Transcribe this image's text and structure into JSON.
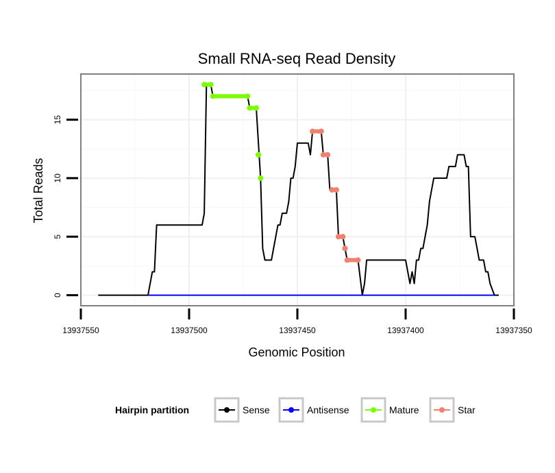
{
  "chart_data": {
    "type": "line",
    "title": "Small RNA-seq Read Density",
    "xlabel": "Genomic Position",
    "ylabel": "Total Reads",
    "x_reversed": true,
    "xlim": [
      13937550,
      13937350
    ],
    "ylim": [
      -0.9,
      18.9
    ],
    "x_ticks": [
      13937550,
      13937500,
      13937450,
      13937400,
      13937350
    ],
    "x_tick_labels": [
      "13937550",
      "13937500",
      "13937450",
      "13937400",
      "13937350"
    ],
    "y_ticks": [
      0,
      5,
      10,
      15
    ],
    "y_tick_labels": [
      "0",
      "5",
      "10",
      "15"
    ],
    "grid": true,
    "legend": {
      "title": "Hairpin partition",
      "position": "bottom",
      "entries": [
        {
          "name": "Sense",
          "color": "#000000"
        },
        {
          "name": "Antisense",
          "color": "#0000ff"
        },
        {
          "name": "Mature",
          "color": "#7cfc00"
        },
        {
          "name": "Star",
          "color": "#f08070"
        }
      ]
    },
    "series": [
      {
        "name": "Sense",
        "color": "#000000",
        "style": "line",
        "points": [
          [
            13937542,
            0
          ],
          [
            13937519,
            0
          ],
          [
            13937517,
            2
          ],
          [
            13937516,
            2
          ],
          [
            13937515,
            6
          ],
          [
            13937494,
            6
          ],
          [
            13937493,
            7
          ],
          [
            13937492,
            18
          ],
          [
            13937490,
            18
          ],
          [
            13937489,
            17
          ],
          [
            13937473,
            17
          ],
          [
            13937472,
            16
          ],
          [
            13937469,
            16
          ],
          [
            13937467,
            10
          ],
          [
            13937466,
            4
          ],
          [
            13937465,
            3
          ],
          [
            13937462,
            3
          ],
          [
            13937459,
            6
          ],
          [
            13937458,
            6
          ],
          [
            13937457,
            7
          ],
          [
            13937455,
            7
          ],
          [
            13937454,
            8
          ],
          [
            13937453,
            10
          ],
          [
            13937452,
            10
          ],
          [
            13937451,
            11
          ],
          [
            13937450,
            13
          ],
          [
            13937445,
            13
          ],
          [
            13937444,
            12
          ],
          [
            13937443,
            14
          ],
          [
            13937439,
            14
          ],
          [
            13937438,
            12
          ],
          [
            13937436,
            12
          ],
          [
            13937435,
            9
          ],
          [
            13937432,
            9
          ],
          [
            13937431,
            5
          ],
          [
            13937429,
            5
          ],
          [
            13937428,
            4
          ],
          [
            13937427,
            3
          ],
          [
            13937422,
            3
          ],
          [
            13937420,
            0
          ],
          [
            13937419,
            1
          ],
          [
            13937418,
            3
          ],
          [
            13937400,
            3
          ],
          [
            13937398,
            1
          ],
          [
            13937397,
            2
          ],
          [
            13937396,
            1
          ],
          [
            13937395,
            3
          ],
          [
            13937394,
            3
          ],
          [
            13937393,
            4
          ],
          [
            13937392,
            4
          ],
          [
            13937391,
            5
          ],
          [
            13937390,
            6
          ],
          [
            13937389,
            8
          ],
          [
            13937388,
            9
          ],
          [
            13937387,
            10
          ],
          [
            13937381,
            10
          ],
          [
            13937380,
            11
          ],
          [
            13937377,
            11
          ],
          [
            13937376,
            12
          ],
          [
            13937373,
            12
          ],
          [
            13937372,
            11
          ],
          [
            13937371,
            11
          ],
          [
            13937370,
            5
          ],
          [
            13937368,
            5
          ],
          [
            13937367,
            4
          ],
          [
            13937366,
            3
          ],
          [
            13937364,
            3
          ],
          [
            13937363,
            2
          ],
          [
            13937362,
            2
          ],
          [
            13937361,
            1
          ],
          [
            13937359,
            0
          ],
          [
            13937357,
            0
          ]
        ]
      },
      {
        "name": "Antisense",
        "color": "#0000ff",
        "style": "line",
        "points": [
          [
            13937519,
            0
          ],
          [
            13937359,
            0
          ]
        ]
      },
      {
        "name": "Mature",
        "color": "#7cfc00",
        "style": "line+points",
        "segments": [
          [
            [
              13937493,
              18
            ],
            [
              13937490,
              18
            ]
          ],
          [
            [
              13937489,
              17
            ],
            [
              13937473,
              17
            ]
          ],
          [
            [
              13937472,
              16
            ],
            [
              13937469,
              16
            ]
          ],
          [
            [
              13937468,
              12
            ],
            [
              13937468,
              12
            ]
          ],
          [
            [
              13937467,
              10
            ],
            [
              13937467,
              10
            ]
          ]
        ]
      },
      {
        "name": "Star",
        "color": "#f08070",
        "style": "line+points",
        "segments": [
          [
            [
              13937443,
              14
            ],
            [
              13937439,
              14
            ]
          ],
          [
            [
              13937438,
              12
            ],
            [
              13937436,
              12
            ]
          ],
          [
            [
              13937434,
              9
            ],
            [
              13937432,
              9
            ]
          ],
          [
            [
              13937431,
              5
            ],
            [
              13937429,
              5
            ]
          ],
          [
            [
              13937428,
              4
            ],
            [
              13937428,
              4
            ]
          ],
          [
            [
              13937427,
              3
            ],
            [
              13937422,
              3
            ]
          ]
        ]
      }
    ]
  }
}
